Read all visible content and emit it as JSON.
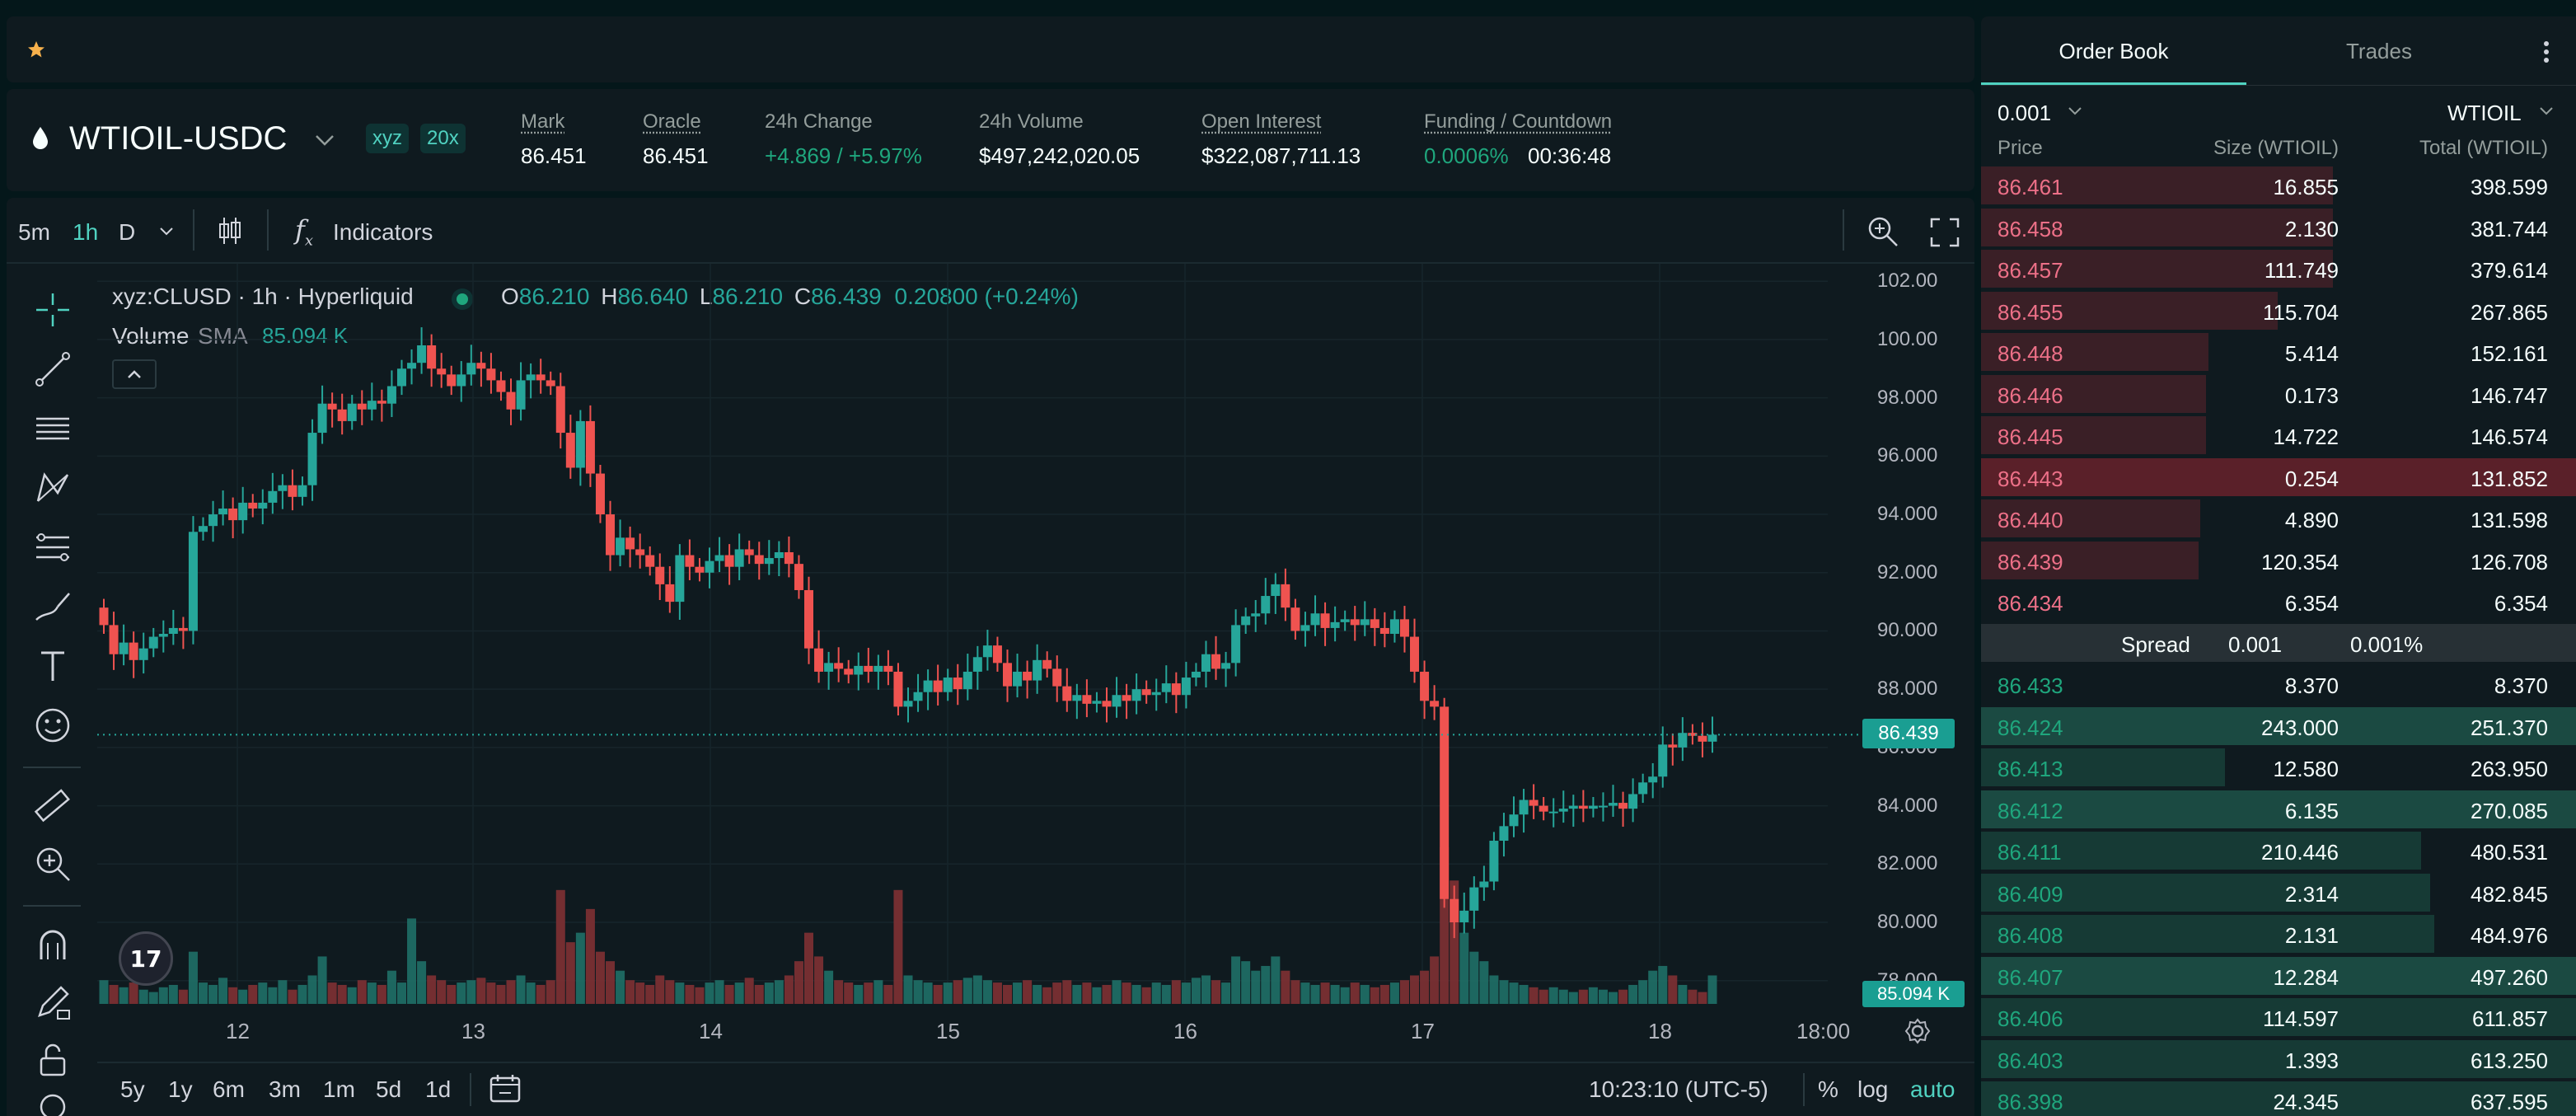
{
  "favorites_bar": {
    "star_icon": "star-icon"
  },
  "market": {
    "symbol": "WTIOIL-USDC",
    "dex_badge": "xyz",
    "leverage_badge": "20x",
    "stats": [
      {
        "label": "Mark",
        "value": "86.451",
        "underline": true
      },
      {
        "label": "Oracle",
        "value": "86.451",
        "underline": true
      },
      {
        "label": "24h Change",
        "value": "+4.869 / +5.97%",
        "underline": false,
        "color": "green"
      },
      {
        "label": "24h Volume",
        "value": "$497,242,020.05",
        "underline": false
      },
      {
        "label": "Open Interest",
        "value": "$322,087,711.13",
        "underline": true
      }
    ],
    "funding": {
      "label": "Funding / Countdown",
      "rate": "0.0006%",
      "countdown": "00:36:48"
    }
  },
  "chart_toolbar": {
    "intervals": [
      "5m",
      "1h",
      "D"
    ],
    "active_interval": "1h",
    "indicators_label": "Indicators"
  },
  "chart_legend": {
    "title": "xyz:CLUSD · 1h · Hyperliquid",
    "o_label": "O",
    "o_value": "86.210",
    "h_label": "H",
    "h_value": "86.640",
    "l_label": "L",
    "l_value": "86.210",
    "c_label": "C",
    "c_value": "86.439",
    "change": "0.20800 (+0.24%)",
    "volume_label": "Volume",
    "sma_label": "SMA",
    "sma_value": "85.094 K"
  },
  "chart_data": {
    "type": "candlestick",
    "x_ticks": [
      "12",
      "13",
      "14",
      "15",
      "16",
      "17",
      "18",
      "18:00"
    ],
    "y_ticks": [
      "102.00",
      "100.00",
      "98.000",
      "96.000",
      "94.000",
      "92.000",
      "90.000",
      "88.000",
      "86.000",
      "84.000",
      "82.000",
      "80.000",
      "78.000"
    ],
    "y_range": [
      77.2,
      102.6
    ],
    "last_price_label": "86.439",
    "last_price": 86.439,
    "volume_label": "85.094 K",
    "closes": [
      90.2,
      89.2,
      89.6,
      89.0,
      89.4,
      89.8,
      89.9,
      90.1,
      90.0,
      93.4,
      93.6,
      94.0,
      94.2,
      93.8,
      94.4,
      94.2,
      94.4,
      94.8,
      95.0,
      94.6,
      95.0,
      96.8,
      97.8,
      97.6,
      97.2,
      97.8,
      97.6,
      97.9,
      97.8,
      98.4,
      99.0,
      99.2,
      99.8,
      99.0,
      98.8,
      98.4,
      98.8,
      99.2,
      99.0,
      98.6,
      98.2,
      97.6,
      98.6,
      98.8,
      98.6,
      98.4,
      96.8,
      95.6,
      97.2,
      95.4,
      94.0,
      92.6,
      93.2,
      92.8,
      92.6,
      92.2,
      91.6,
      91.0,
      92.6,
      92.2,
      92.0,
      92.4,
      92.6,
      92.2,
      92.8,
      92.6,
      92.3,
      92.5,
      92.7,
      92.3,
      91.4,
      89.4,
      88.6,
      88.9,
      88.7,
      88.5,
      88.8,
      88.6,
      88.8,
      88.6,
      87.4,
      87.6,
      87.9,
      88.3,
      87.9,
      88.4,
      88.0,
      88.6,
      89.1,
      89.5,
      88.9,
      88.1,
      88.6,
      88.3,
      89.0,
      88.7,
      88.1,
      87.6,
      87.8,
      87.5,
      87.6,
      87.4,
      87.8,
      87.6,
      88.0,
      87.8,
      87.9,
      88.2,
      87.8,
      88.4,
      88.6,
      89.2,
      88.7,
      88.9,
      90.2,
      90.5,
      90.6,
      91.2,
      91.6,
      90.8,
      90.0,
      90.2,
      90.6,
      90.1,
      90.3,
      90.4,
      90.2,
      90.4,
      90.1,
      89.9,
      90.4,
      89.8,
      88.6,
      87.6,
      87.4,
      80.8,
      80.0,
      80.4,
      81.2,
      81.4,
      82.8,
      83.3,
      83.7,
      84.2,
      84.0,
      83.8,
      83.8,
      83.9,
      84.0,
      83.9,
      84.0,
      84.0,
      84.1,
      83.9,
      84.4,
      84.8,
      85.0,
      86.1,
      86.0,
      86.5,
      86.4,
      86.2,
      86.439
    ],
    "volumes": [
      10,
      8,
      7,
      9,
      6,
      5,
      7,
      8,
      6,
      22,
      9,
      8,
      11,
      7,
      6,
      8,
      9,
      7,
      10,
      6,
      8,
      12,
      20,
      9,
      8,
      7,
      10,
      9,
      8,
      14,
      9,
      36,
      18,
      12,
      10,
      8,
      9,
      10,
      11,
      9,
      8,
      10,
      12,
      9,
      8,
      10,
      48,
      26,
      30,
      40,
      22,
      18,
      14,
      10,
      9,
      8,
      12,
      10,
      9,
      8,
      7,
      9,
      10,
      8,
      9,
      11,
      8,
      9,
      10,
      12,
      18,
      30,
      20,
      14,
      10,
      9,
      8,
      9,
      10,
      8,
      48,
      12,
      10,
      9,
      8,
      9,
      10,
      11,
      12,
      10,
      9,
      8,
      9,
      10,
      8,
      7,
      9,
      10,
      8,
      9,
      7,
      8,
      10,
      9,
      8,
      7,
      9,
      8,
      10,
      9,
      11,
      12,
      10,
      9,
      20,
      18,
      14,
      16,
      20,
      14,
      10,
      9,
      8,
      9,
      8,
      7,
      9,
      8,
      7,
      8,
      9,
      10,
      12,
      14,
      20,
      66,
      52,
      30,
      22,
      18,
      12,
      10,
      9,
      8,
      7,
      6,
      7,
      6,
      5,
      6,
      7,
      6,
      5,
      6,
      8,
      10,
      14,
      16,
      12,
      8,
      6,
      5,
      12
    ]
  },
  "chart_footer": {
    "ranges": [
      "5y",
      "1y",
      "6m",
      "3m",
      "1m",
      "5d",
      "1d"
    ],
    "clock": "10:23:10 (UTC-5)",
    "pct": "%",
    "log": "log",
    "auto": "auto"
  },
  "order_book": {
    "tabs": [
      "Order Book",
      "Trades"
    ],
    "active_tab": "Order Book",
    "tick_size": "0.001",
    "unit": "WTIOIL",
    "headers": {
      "price": "Price",
      "size": "Size (WTIOIL)",
      "total": "Total (WTIOIL)"
    },
    "asks": [
      {
        "price": "86.461",
        "size": "16.855",
        "total": "398.599",
        "depth": 0.592,
        "hl": false
      },
      {
        "price": "86.458",
        "size": "2.130",
        "total": "381.744",
        "depth": 0.592,
        "hl": false
      },
      {
        "price": "86.457",
        "size": "111.749",
        "total": "379.614",
        "depth": 0.592,
        "hl": false
      },
      {
        "price": "86.455",
        "size": "115.704",
        "total": "267.865",
        "depth": 0.498,
        "hl": false
      },
      {
        "price": "86.448",
        "size": "5.414",
        "total": "152.161",
        "depth": 0.382,
        "hl": false
      },
      {
        "price": "86.446",
        "size": "0.173",
        "total": "146.747",
        "depth": 0.378,
        "hl": false
      },
      {
        "price": "86.445",
        "size": "14.722",
        "total": "146.574",
        "depth": 0.378,
        "hl": false
      },
      {
        "price": "86.443",
        "size": "0.254",
        "total": "131.852",
        "depth": 1.0,
        "hl": true
      },
      {
        "price": "86.440",
        "size": "4.890",
        "total": "131.598",
        "depth": 0.368,
        "hl": false
      },
      {
        "price": "86.439",
        "size": "120.354",
        "total": "126.708",
        "depth": 0.365,
        "hl": false
      },
      {
        "price": "86.434",
        "size": "6.354",
        "total": "6.354",
        "depth": 0.0,
        "hl": false
      }
    ],
    "spread": {
      "label": "Spread",
      "value": "0.001",
      "pct": "0.001%"
    },
    "bids": [
      {
        "price": "86.433",
        "size": "8.370",
        "total": "8.370",
        "depth": 0.0,
        "hl": false
      },
      {
        "price": "86.424",
        "size": "243.000",
        "total": "251.370",
        "depth": 1.0,
        "hl": true
      },
      {
        "price": "86.413",
        "size": "12.580",
        "total": "263.950",
        "depth": 0.41,
        "hl": false
      },
      {
        "price": "86.412",
        "size": "6.135",
        "total": "270.085",
        "depth": 1.0,
        "hl": true
      },
      {
        "price": "86.411",
        "size": "210.446",
        "total": "480.531",
        "depth": 0.74,
        "hl": false
      },
      {
        "price": "86.409",
        "size": "2.314",
        "total": "482.845",
        "depth": 0.755,
        "hl": false
      },
      {
        "price": "86.408",
        "size": "2.131",
        "total": "484.976",
        "depth": 0.762,
        "hl": false
      },
      {
        "price": "86.407",
        "size": "12.284",
        "total": "497.260",
        "depth": 1.0,
        "hl": true
      },
      {
        "price": "86.406",
        "size": "114.597",
        "total": "611.857",
        "depth": 1.0,
        "hl": false
      },
      {
        "price": "86.403",
        "size": "1.393",
        "total": "613.250",
        "depth": 1.0,
        "hl": false
      },
      {
        "price": "86.398",
        "size": "24.345",
        "total": "637.595",
        "depth": 1.0,
        "hl": false
      }
    ]
  },
  "colors": {
    "up": "#26a69a",
    "down": "#ef5350",
    "accent": "#50d2c1",
    "background": "#0f1a1f"
  }
}
